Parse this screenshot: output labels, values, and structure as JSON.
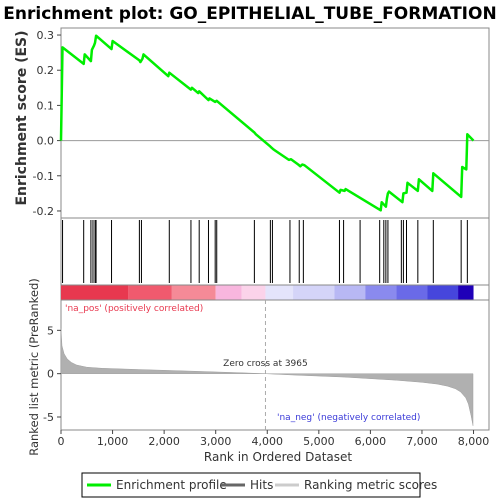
{
  "chart_data": {
    "type": "line",
    "title": "Enrichment plot: GO_EPITHELIAL_TUBE_FORMATION",
    "top_panel": {
      "ylabel": "Enrichment score (ES)",
      "ylim": [
        -0.22,
        0.32
      ],
      "yticks": [
        -0.2,
        -0.1,
        0.0,
        0.1,
        0.2,
        0.3
      ],
      "series": [
        {
          "name": "Enrichment profile",
          "color": "#00ee00",
          "x": [
            0,
            30,
            440,
            460,
            580,
            600,
            640,
            660,
            680,
            980,
            1000,
            1520,
            1540,
            1580,
            1600,
            2080,
            2100,
            2520,
            2540,
            2660,
            2680,
            2860,
            2880,
            2990,
            3020,
            3750,
            3780,
            4060,
            4080,
            4120,
            4140,
            4420,
            4460,
            4600,
            4640,
            4680,
            4720,
            5400,
            5420,
            5500,
            5520,
            6200,
            6220,
            6300,
            6320,
            6340,
            6360,
            6620,
            6640,
            6700,
            6720,
            6920,
            6940,
            7200,
            7220,
            7760,
            7780,
            7860,
            7880,
            8000
          ],
          "y": [
            0.0,
            0.265,
            0.218,
            0.245,
            0.226,
            0.258,
            0.27,
            0.278,
            0.298,
            0.26,
            0.283,
            0.228,
            0.223,
            0.233,
            0.245,
            0.183,
            0.193,
            0.145,
            0.15,
            0.135,
            0.14,
            0.115,
            0.12,
            0.11,
            0.113,
            0.023,
            0.018,
            -0.017,
            -0.02,
            -0.025,
            -0.027,
            -0.055,
            -0.053,
            -0.068,
            -0.073,
            -0.068,
            -0.07,
            -0.148,
            -0.14,
            -0.143,
            -0.138,
            -0.198,
            -0.175,
            -0.188,
            -0.165,
            -0.15,
            -0.145,
            -0.175,
            -0.15,
            -0.148,
            -0.12,
            -0.143,
            -0.11,
            -0.143,
            -0.093,
            -0.16,
            -0.075,
            -0.082,
            0.018,
            0.0
          ]
        }
      ]
    },
    "hits_panel": {
      "name": "Hits",
      "hits": [
        30,
        440,
        580,
        620,
        660,
        680,
        980,
        1520,
        1560,
        2100,
        2520,
        2680,
        2860,
        2990,
        3020,
        3750,
        4060,
        4100,
        4440,
        4620,
        4700,
        5400,
        5480,
        5800,
        6180,
        6260,
        6300,
        6340,
        6600,
        6640,
        6700,
        6920,
        7220,
        7760,
        7880
      ]
    },
    "colorbar": {
      "segments": [
        {
          "from": 0,
          "to": 1300,
          "color": "#e8384f"
        },
        {
          "from": 1300,
          "to": 2150,
          "color": "#f05a6e"
        },
        {
          "from": 2150,
          "to": 3000,
          "color": "#f58a97"
        },
        {
          "from": 3000,
          "to": 3500,
          "color": "#f8b6de"
        },
        {
          "from": 3500,
          "to": 3965,
          "color": "#fbd3ea"
        },
        {
          "from": 3965,
          "to": 4500,
          "color": "#e4e4fb"
        },
        {
          "from": 4500,
          "to": 5300,
          "color": "#d4d4f8"
        },
        {
          "from": 5300,
          "to": 5900,
          "color": "#b8b8f4"
        },
        {
          "from": 5900,
          "to": 6500,
          "color": "#8a8aee"
        },
        {
          "from": 6500,
          "to": 7100,
          "color": "#6a6ae8"
        },
        {
          "from": 7100,
          "to": 7700,
          "color": "#4646dc"
        },
        {
          "from": 7700,
          "to": 8000,
          "color": "#1f00b8"
        }
      ]
    },
    "rank_panel": {
      "name": "Ranking metric scores",
      "ylabel": "Ranked list metric (PreRanked)",
      "ylim": [
        -6.5,
        8.5
      ],
      "yticks": [
        -5,
        0,
        5
      ],
      "x": [
        0,
        20,
        60,
        120,
        200,
        300,
        500,
        800,
        1500,
        2500,
        3500,
        3965,
        4500,
        5500,
        6500,
        7000,
        7300,
        7500,
        7650,
        7750,
        7850,
        7900,
        7950,
        7990
      ],
      "y": [
        5.2,
        3.2,
        2.3,
        1.7,
        1.3,
        1.0,
        0.75,
        0.62,
        0.48,
        0.3,
        0.1,
        0.0,
        -0.15,
        -0.4,
        -0.75,
        -1.0,
        -1.2,
        -1.45,
        -1.75,
        -2.1,
        -2.8,
        -3.5,
        -4.8,
        -6.0
      ],
      "zero_cross_label": "Zero cross at 3965",
      "zero_cross": 3965,
      "pos_label": "'na_pos' (positively correlated)",
      "neg_label": "'na_neg' (negatively correlated)",
      "fill_color": "#b0b0b0"
    },
    "xlabel": "Rank in Ordered Dataset",
    "xlim": [
      0,
      8300
    ],
    "xticks": [
      0,
      1000,
      2000,
      3000,
      4000,
      5000,
      6000,
      7000,
      8000
    ],
    "xtick_labels": [
      "0",
      "1,000",
      "2,000",
      "3,000",
      "4,000",
      "5,000",
      "6,000",
      "7,000",
      "8,000"
    ],
    "legend": {
      "position": "bottom",
      "entries": [
        {
          "label": "Enrichment profile",
          "color": "#00ee00"
        },
        {
          "label": "Hits",
          "color": "#666666"
        },
        {
          "label": "Ranking metric scores",
          "color": "#cccccc"
        }
      ]
    }
  }
}
